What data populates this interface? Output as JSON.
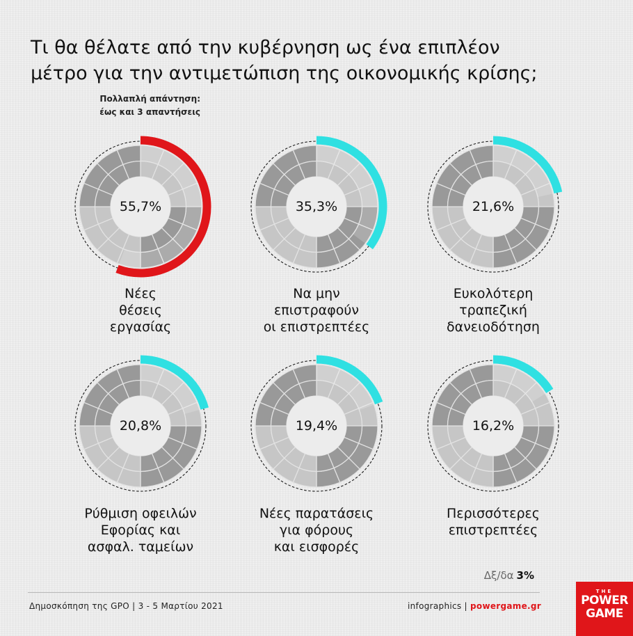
{
  "title_line1": "Τι θα θέλατε από την κυβέρνηση ως ένα επιπλέον",
  "title_line2": "μέτρο για την αντιμετώπιση της οικονομικής κρίσης;",
  "note_line1": "Πολλαπλή απάντηση:",
  "note_line2": "έως και 3 απαντήσεις",
  "colors": {
    "highlight_red": "#e0161a",
    "highlight_cyan": "#2fe0e2",
    "ring_dark": "#999999",
    "ring_light": "#c6c6c6"
  },
  "chart_data": {
    "type": "pie",
    "style": "donut-grid",
    "unit": "%",
    "items": [
      {
        "label_lines": [
          "Νέες",
          "θέσεις",
          "εργασίας"
        ],
        "value": 55.7,
        "value_label": "55,7%",
        "color": "#e0161a"
      },
      {
        "label_lines": [
          "Να μην",
          "επιστραφούν",
          "οι επιστρεπτέες"
        ],
        "value": 35.3,
        "value_label": "35,3%",
        "color": "#2fe0e2"
      },
      {
        "label_lines": [
          "Ευκολότερη",
          "τραπεζική",
          "δανειοδότηση"
        ],
        "value": 21.6,
        "value_label": "21,6%",
        "color": "#2fe0e2"
      },
      {
        "label_lines": [
          "Ρύθμιση οφειλών",
          "Εφορίας και",
          "ασφαλ. ταμείων"
        ],
        "value": 20.8,
        "value_label": "20,8%",
        "color": "#2fe0e2"
      },
      {
        "label_lines": [
          "Νέες παρατάσεις",
          "για φόρους",
          "και εισφορές"
        ],
        "value": 19.4,
        "value_label": "19,4%",
        "color": "#2fe0e2"
      },
      {
        "label_lines": [
          "Περισσότερες",
          "επιστρεπτέες"
        ],
        "value": 16.2,
        "value_label": "16,2%",
        "color": "#2fe0e2"
      }
    ]
  },
  "dk_label": "Δξ/δα",
  "dk_value": "3%",
  "source": "Δημοσκόπηση της GPO |  3 - 5 Μαρτίου 2021",
  "credit_prefix": "infographics | ",
  "credit_site": "powergame.gr",
  "logo_the": "THE",
  "logo_line1": "POWER",
  "logo_line2": "GAME"
}
